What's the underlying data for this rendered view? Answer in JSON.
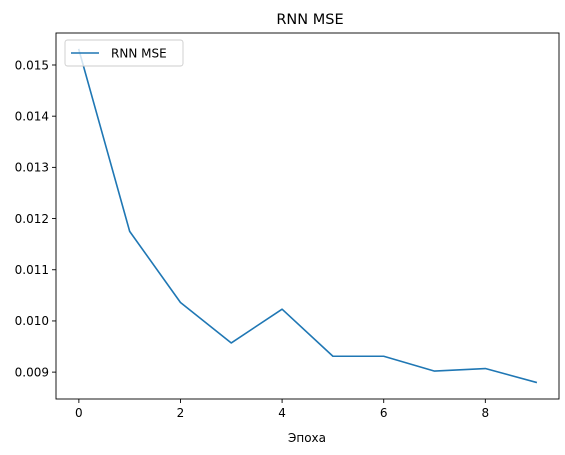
{
  "chart_data": {
    "type": "line",
    "title": "RNN MSE",
    "xlabel": "Эпоха",
    "ylabel": "",
    "x": [
      0,
      1,
      2,
      3,
      4,
      5,
      6,
      7,
      8,
      9
    ],
    "series": [
      {
        "name": "RNN MSE",
        "color": "#1f77b4",
        "values": [
          0.0153,
          0.01175,
          0.01036,
          0.00957,
          0.01023,
          0.00931,
          0.00931,
          0.00902,
          0.00907,
          0.0088
        ]
      }
    ],
    "xlim": [
      -0.45,
      9.45
    ],
    "ylim": [
      0.008475,
      0.015625
    ],
    "xticks": [
      0,
      2,
      4,
      6,
      8
    ],
    "xtick_labels": [
      "0",
      "2",
      "4",
      "6",
      "8"
    ],
    "yticks": [
      0.009,
      0.01,
      0.011,
      0.012,
      0.013,
      0.014,
      0.015
    ],
    "ytick_labels": [
      "0.009",
      "0.010",
      "0.011",
      "0.012",
      "0.013",
      "0.014",
      "0.015"
    ],
    "grid": false,
    "legend_position": "upper-left"
  }
}
